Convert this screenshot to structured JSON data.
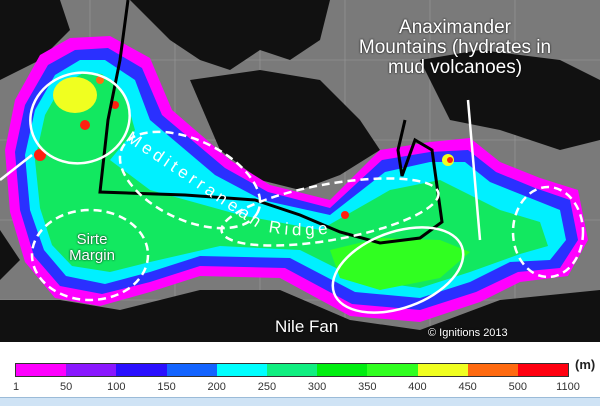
{
  "map": {
    "labels": {
      "anaximander": "Anaximander Mountains (hydrates in mud volcanoes)",
      "mediterranean_ridge": "Mediterranean Ridge",
      "sirte": "Sirte Margin",
      "nile": "Nile Fan",
      "copyright": "© Ignitions 2013"
    },
    "colors": {
      "sea_background": "#7a7a7a",
      "land": "#000000",
      "outline": "#ffffff"
    }
  },
  "colorbar": {
    "unit": "(m)",
    "ticks": [
      "1",
      "50",
      "100",
      "150",
      "200",
      "250",
      "300",
      "350",
      "400",
      "450",
      "500",
      "1100"
    ],
    "colors": [
      "#ff00ff",
      "#8a18ff",
      "#2a10ff",
      "#1464ff",
      "#00ffff",
      "#10ee80",
      "#00ee10",
      "#30ff20",
      "#f0ff20",
      "#ff6a10",
      "#ff0010"
    ]
  }
}
